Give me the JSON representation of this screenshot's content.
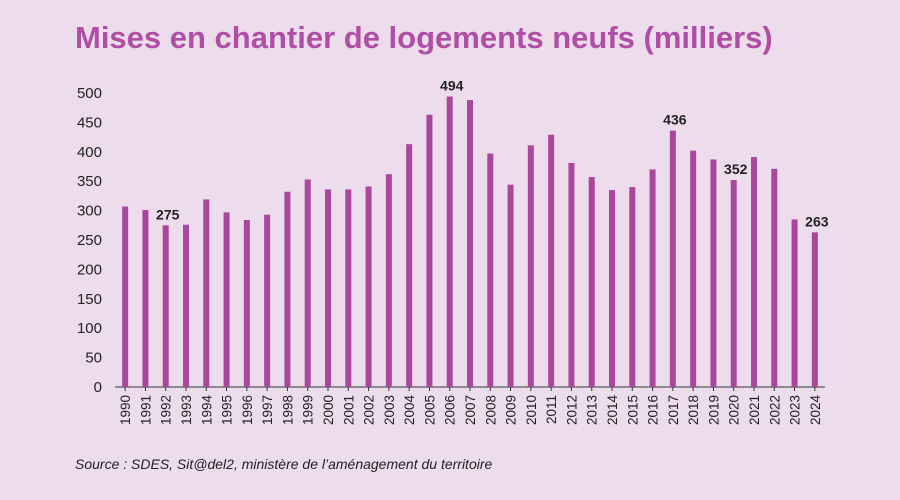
{
  "title": "Mises en chantier de logements neufs (milliers)",
  "source": "Source : SDES, Sit@del2, ministère de l’aménagement du territoire",
  "colors": {
    "bar": "#a8479b",
    "title": "#b04ea5",
    "background": "#ecdcec",
    "axis": "#333333"
  },
  "chart_data": {
    "type": "bar",
    "title": "Mises en chantier de logements neufs (milliers)",
    "xlabel": "",
    "ylabel": "",
    "ylim": [
      0,
      500
    ],
    "yticks": [
      0,
      50,
      100,
      150,
      200,
      250,
      300,
      350,
      400,
      450,
      500
    ],
    "grid": false,
    "categories": [
      "1990",
      "1991",
      "1992",
      "1993",
      "1994",
      "1995",
      "1996",
      "1997",
      "1998",
      "1999",
      "2000",
      "2001",
      "2002",
      "2003",
      "2004",
      "2005",
      "2006",
      "2007",
      "2008",
      "2009",
      "2010",
      "2011",
      "2012",
      "2013",
      "2014",
      "2015",
      "2016",
      "2017",
      "2018",
      "2019",
      "2020",
      "2021",
      "2022",
      "2023",
      "2024"
    ],
    "values": [
      307,
      301,
      275,
      276,
      319,
      297,
      284,
      293,
      332,
      353,
      336,
      336,
      341,
      362,
      413,
      463,
      494,
      488,
      397,
      344,
      411,
      429,
      381,
      357,
      335,
      340,
      370,
      436,
      402,
      387,
      352,
      391,
      371,
      285,
      263
    ],
    "annotations": [
      {
        "category": "1992",
        "label": "275"
      },
      {
        "category": "2006",
        "label": "494"
      },
      {
        "category": "2017",
        "label": "436"
      },
      {
        "category": "2020",
        "label": "352"
      },
      {
        "category": "2024",
        "label": "263"
      }
    ]
  }
}
